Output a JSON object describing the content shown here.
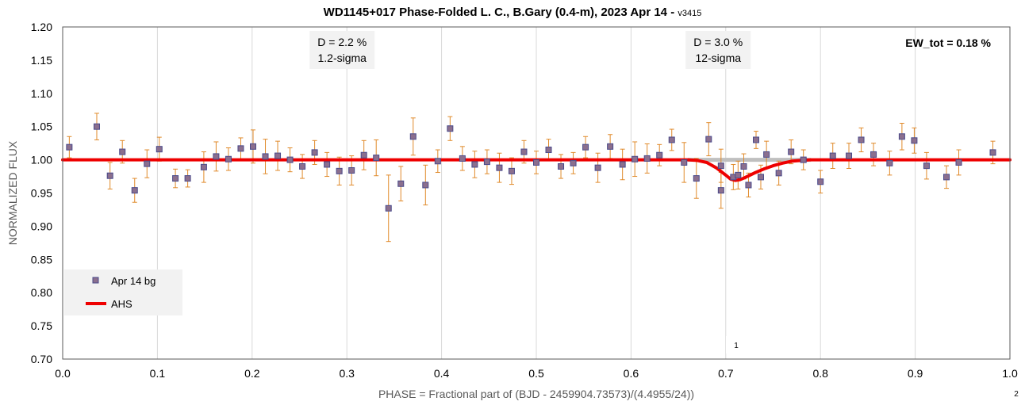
{
  "chart_data": {
    "type": "scatter",
    "title": "WD1145+017 Phase-Folded L. C., B.Gary (0.4-m), 2023 Apr 14 - ",
    "title_suffix": "v3415",
    "xlabel": "PHASE = Fractional part of (BJD - 2459904.73573)/(4.4955/24))",
    "ylabel": "NORMALIZED FLUX",
    "xlim": [
      0.0,
      1.0
    ],
    "ylim": [
      0.7,
      1.2
    ],
    "x_ticks": [
      "0.0",
      "0.1",
      "0.2",
      "0.3",
      "0.4",
      "0.5",
      "0.6",
      "0.7",
      "0.8",
      "0.9",
      "1.0"
    ],
    "y_ticks": [
      "0.70",
      "0.75",
      "0.80",
      "0.85",
      "0.90",
      "0.95",
      "1.00",
      "1.05",
      "1.10",
      "1.15",
      "1.20"
    ],
    "grid": "vertical",
    "legend_placement": "bottom-left",
    "colors": {
      "marker_fill": "#8b6f8e",
      "marker_edge": "#4a4a8a",
      "error_bar": "#e08a2a",
      "model_line": "#ee0000",
      "reference_line": "#bfbfbf",
      "grid": "#d9d9d9"
    },
    "series": [
      {
        "name": "Apr 14 bg",
        "points": [
          {
            "x": 0.007,
            "y": 1.019,
            "err": 0.016
          },
          {
            "x": 0.036,
            "y": 1.05,
            "err": 0.02
          },
          {
            "x": 0.05,
            "y": 0.976,
            "err": 0.02
          },
          {
            "x": 0.063,
            "y": 1.012,
            "err": 0.017
          },
          {
            "x": 0.076,
            "y": 0.954,
            "err": 0.018
          },
          {
            "x": 0.089,
            "y": 0.994,
            "err": 0.021
          },
          {
            "x": 0.102,
            "y": 1.016,
            "err": 0.018
          },
          {
            "x": 0.119,
            "y": 0.972,
            "err": 0.014
          },
          {
            "x": 0.132,
            "y": 0.972,
            "err": 0.013
          },
          {
            "x": 0.149,
            "y": 0.989,
            "err": 0.023
          },
          {
            "x": 0.162,
            "y": 1.005,
            "err": 0.022
          },
          {
            "x": 0.175,
            "y": 1.001,
            "err": 0.017
          },
          {
            "x": 0.188,
            "y": 1.017,
            "err": 0.016
          },
          {
            "x": 0.201,
            "y": 1.02,
            "err": 0.025
          },
          {
            "x": 0.214,
            "y": 1.005,
            "err": 0.026
          },
          {
            "x": 0.227,
            "y": 1.006,
            "err": 0.022
          },
          {
            "x": 0.24,
            "y": 1.0,
            "err": 0.018
          },
          {
            "x": 0.253,
            "y": 0.99,
            "err": 0.018
          },
          {
            "x": 0.266,
            "y": 1.011,
            "err": 0.018
          },
          {
            "x": 0.279,
            "y": 0.993,
            "err": 0.018
          },
          {
            "x": 0.292,
            "y": 0.983,
            "err": 0.021
          },
          {
            "x": 0.305,
            "y": 0.984,
            "err": 0.022
          },
          {
            "x": 0.318,
            "y": 1.007,
            "err": 0.022
          },
          {
            "x": 0.331,
            "y": 1.003,
            "err": 0.027
          },
          {
            "x": 0.344,
            "y": 0.927,
            "err": 0.05
          },
          {
            "x": 0.357,
            "y": 0.964,
            "err": 0.026
          },
          {
            "x": 0.37,
            "y": 1.035,
            "err": 0.028
          },
          {
            "x": 0.383,
            "y": 0.962,
            "err": 0.03
          },
          {
            "x": 0.396,
            "y": 0.998,
            "err": 0.017
          },
          {
            "x": 0.409,
            "y": 1.047,
            "err": 0.018
          },
          {
            "x": 0.422,
            "y": 1.002,
            "err": 0.018
          },
          {
            "x": 0.435,
            "y": 0.993,
            "err": 0.02
          },
          {
            "x": 0.448,
            "y": 0.997,
            "err": 0.018
          },
          {
            "x": 0.461,
            "y": 0.988,
            "err": 0.022
          },
          {
            "x": 0.474,
            "y": 0.983,
            "err": 0.02
          },
          {
            "x": 0.487,
            "y": 1.012,
            "err": 0.017
          },
          {
            "x": 0.5,
            "y": 0.996,
            "err": 0.017
          },
          {
            "x": 0.513,
            "y": 1.015,
            "err": 0.016
          },
          {
            "x": 0.526,
            "y": 0.99,
            "err": 0.018
          },
          {
            "x": 0.539,
            "y": 0.995,
            "err": 0.016
          },
          {
            "x": 0.552,
            "y": 1.019,
            "err": 0.016
          },
          {
            "x": 0.565,
            "y": 0.988,
            "err": 0.022
          },
          {
            "x": 0.578,
            "y": 1.02,
            "err": 0.018
          },
          {
            "x": 0.591,
            "y": 0.993,
            "err": 0.023
          },
          {
            "x": 0.604,
            "y": 1.001,
            "err": 0.026
          },
          {
            "x": 0.617,
            "y": 1.002,
            "err": 0.022
          },
          {
            "x": 0.63,
            "y": 1.007,
            "err": 0.016
          },
          {
            "x": 0.643,
            "y": 1.03,
            "err": 0.016
          },
          {
            "x": 0.656,
            "y": 0.996,
            "err": 0.03
          },
          {
            "x": 0.669,
            "y": 0.972,
            "err": 0.03
          },
          {
            "x": 0.682,
            "y": 1.031,
            "err": 0.025
          },
          {
            "x": 0.695,
            "y": 0.991,
            "err": 0.025
          },
          {
            "x": 0.695,
            "y": 0.954,
            "err": 0.027
          },
          {
            "x": 0.708,
            "y": 0.974,
            "err": 0.019
          },
          {
            "x": 0.713,
            "y": 0.977,
            "err": 0.021
          },
          {
            "x": 0.719,
            "y": 0.99,
            "err": 0.019
          },
          {
            "x": 0.724,
            "y": 0.962,
            "err": 0.018
          },
          {
            "x": 0.732,
            "y": 1.03,
            "err": 0.013
          },
          {
            "x": 0.737,
            "y": 0.974,
            "err": 0.018
          },
          {
            "x": 0.743,
            "y": 1.008,
            "err": 0.02
          },
          {
            "x": 0.756,
            "y": 0.98,
            "err": 0.018
          },
          {
            "x": 0.769,
            "y": 1.012,
            "err": 0.018
          },
          {
            "x": 0.782,
            "y": 1.0,
            "err": 0.015
          },
          {
            "x": 0.8,
            "y": 0.967,
            "err": 0.017
          },
          {
            "x": 0.813,
            "y": 1.006,
            "err": 0.019
          },
          {
            "x": 0.83,
            "y": 1.006,
            "err": 0.019
          },
          {
            "x": 0.843,
            "y": 1.03,
            "err": 0.018
          },
          {
            "x": 0.856,
            "y": 1.008,
            "err": 0.017
          },
          {
            "x": 0.873,
            "y": 0.995,
            "err": 0.018
          },
          {
            "x": 0.886,
            "y": 1.035,
            "err": 0.02
          },
          {
            "x": 0.899,
            "y": 1.029,
            "err": 0.019
          },
          {
            "x": 0.912,
            "y": 0.991,
            "err": 0.02
          },
          {
            "x": 0.933,
            "y": 0.974,
            "err": 0.017
          },
          {
            "x": 0.946,
            "y": 0.996,
            "err": 0.019
          },
          {
            "x": 0.982,
            "y": 1.011,
            "err": 0.017
          }
        ]
      },
      {
        "name": "AHS",
        "x": [
          0.0,
          0.66,
          0.67,
          0.68,
          0.69,
          0.7,
          0.705,
          0.71,
          0.715,
          0.72,
          0.73,
          0.74,
          0.75,
          0.76,
          0.77,
          0.78,
          0.79,
          1.0
        ],
        "y": [
          1.0,
          1.0,
          0.999,
          0.996,
          0.988,
          0.977,
          0.971,
          0.969,
          0.97,
          0.973,
          0.98,
          0.986,
          0.991,
          0.995,
          0.998,
          0.999,
          1.0,
          1.0
        ]
      }
    ],
    "reference_segment": {
      "x": [
        0.66,
        0.79
      ],
      "y": 1.0
    },
    "annotations": [
      {
        "x": 0.295,
        "line1": "D = 2.2 %",
        "line2": "1.2-sigma"
      },
      {
        "x": 0.692,
        "line1": "D = 3.0 %",
        "line2": "12-sigma"
      }
    ],
    "ew_label": "EW_tot = 0.18 %",
    "marker_label_1": "1",
    "marker_label_2": "2",
    "legend": [
      {
        "label": "Apr 14 bg",
        "kind": "marker"
      },
      {
        "label": "AHS",
        "kind": "line"
      }
    ]
  }
}
